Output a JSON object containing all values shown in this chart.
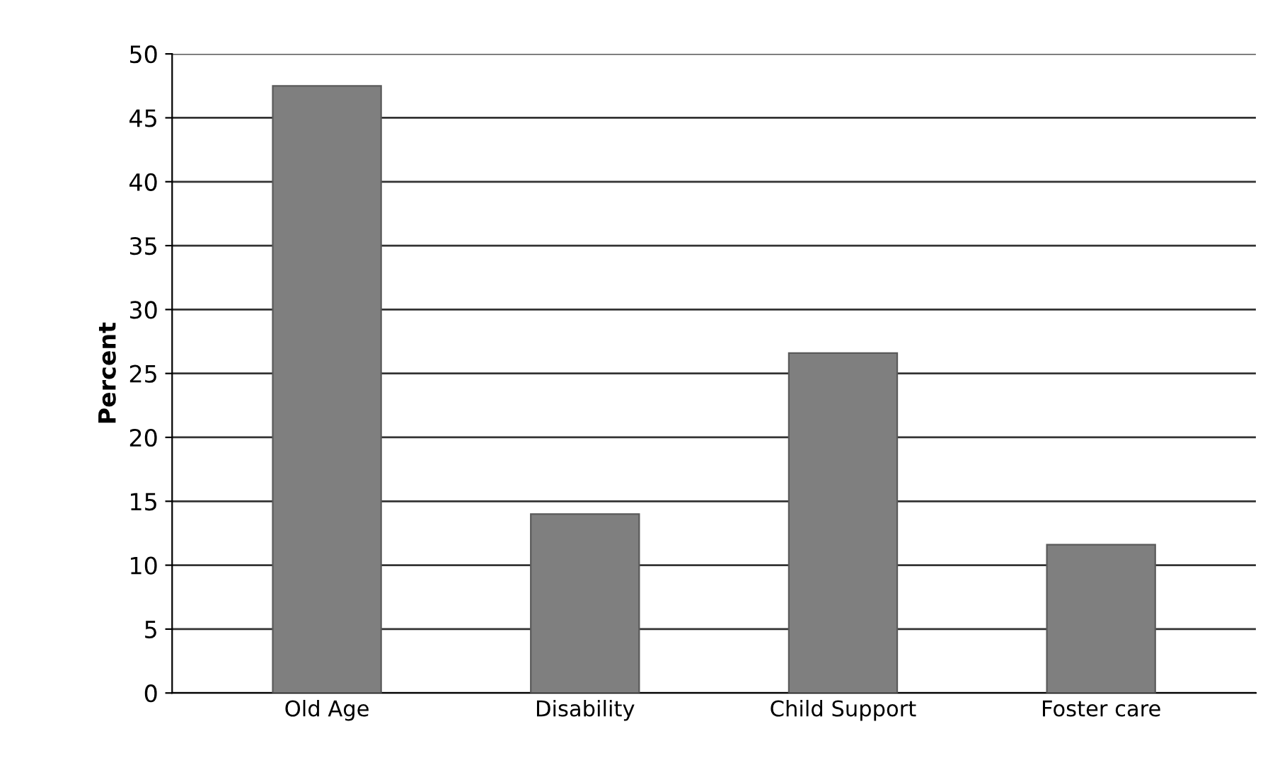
{
  "chart_data": {
    "type": "bar",
    "ylabel": "Percent",
    "categories": [
      "Old Age",
      "Disability",
      "Child Support",
      "Foster care"
    ],
    "values": [
      47.5,
      14.0,
      26.6,
      11.6
    ],
    "color": "#7f7f7f",
    "ylim": [
      0,
      50
    ],
    "yticks": [
      0,
      5,
      10,
      15,
      20,
      25,
      30,
      35,
      40,
      45,
      50
    ],
    "grid": "y",
    "legend": false
  }
}
